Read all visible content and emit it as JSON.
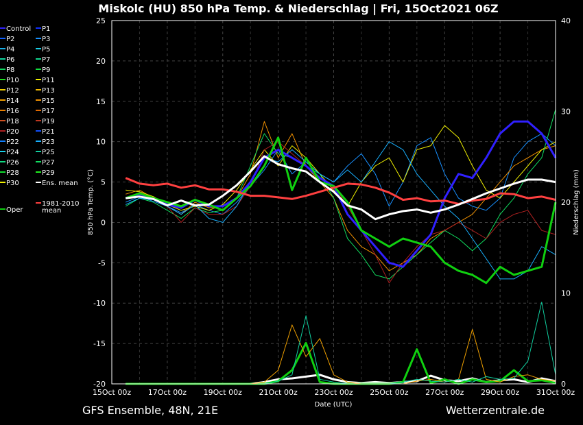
{
  "chart_data": {
    "type": "line",
    "title": "Miskolc  (HU)  850 hPa Temp. & Niederschlag | Fri, 15Oct2021 06Z",
    "xlabel": "Date (UTC)",
    "ylabel": "850 hPa Temp. (°C)",
    "y2label": "Niederschlag (mm)",
    "ylim": [
      -20,
      25
    ],
    "y2lim": [
      0,
      40
    ],
    "yticks": [
      -20,
      -15,
      -10,
      -5,
      0,
      5,
      10,
      15,
      20,
      25
    ],
    "y2ticks": [
      0,
      10,
      20,
      30,
      40
    ],
    "xticks": [
      "15Oct 00z",
      "17Oct 00z",
      "19Oct 00z",
      "21Oct 00z",
      "23Oct 00z",
      "25Oct 00z",
      "27Oct 00z",
      "29Oct 00z",
      "31Oct 00z"
    ],
    "x_unit": "hours after 15Oct 00z, 12-hourly from 12 to 384",
    "x_start_hours": 12,
    "x_step_hours": 12,
    "grid": true,
    "legend_position": "left-outside",
    "legend": [
      {
        "name": "Control",
        "color": "#3020ff"
      },
      {
        "name": "P1",
        "color": "#1030ff"
      },
      {
        "name": "P2",
        "color": "#1060ff"
      },
      {
        "name": "P3",
        "color": "#1890ff"
      },
      {
        "name": "P4",
        "color": "#18b0e8"
      },
      {
        "name": "P5",
        "color": "#18d0e8"
      },
      {
        "name": "P6",
        "color": "#10d8a0"
      },
      {
        "name": "P7",
        "color": "#10d890"
      },
      {
        "name": "P8",
        "color": "#10d860"
      },
      {
        "name": "P9",
        "color": "#10e040"
      },
      {
        "name": "P10",
        "color": "#20e020"
      },
      {
        "name": "P11",
        "color": "#f0f000"
      },
      {
        "name": "P12",
        "color": "#f0d000"
      },
      {
        "name": "P13",
        "color": "#f0b800"
      },
      {
        "name": "P14",
        "color": "#f0a000"
      },
      {
        "name": "P15",
        "color": "#f09000"
      },
      {
        "name": "P16",
        "color": "#e88000"
      },
      {
        "name": "P17",
        "color": "#e06800"
      },
      {
        "name": "P18",
        "color": "#d05020"
      },
      {
        "name": "P19",
        "color": "#c03820"
      },
      {
        "name": "P20",
        "color": "#b02020"
      },
      {
        "name": "P21",
        "color": "#1050ff"
      },
      {
        "name": "P22",
        "color": "#1080ff"
      },
      {
        "name": "P23",
        "color": "#18b0ff"
      },
      {
        "name": "P24",
        "color": "#18d0e8"
      },
      {
        "name": "P25",
        "color": "#10d0a0"
      },
      {
        "name": "P26",
        "color": "#10d880"
      },
      {
        "name": "P27",
        "color": "#10e060"
      },
      {
        "name": "P28",
        "color": "#10e030"
      },
      {
        "name": "P29",
        "color": "#20f020"
      },
      {
        "name": "P30",
        "color": "#f0f000"
      },
      {
        "name": "Ens. mean",
        "color": "#ffffff"
      },
      {
        "name": "1981-2010 mean",
        "color": "#ff4040"
      },
      {
        "name": "Oper",
        "color": "#10d010"
      }
    ],
    "series": [
      {
        "name": "P3",
        "color": "#1890ff",
        "width": 1,
        "values": [
          2.5,
          3.2,
          2.6,
          2.0,
          1.2,
          2.2,
          1.5,
          1.0,
          2.5,
          4.5,
          6.5,
          9.0,
          6.0,
          7.5,
          6.0,
          5.0,
          7.0,
          8.5,
          6.0,
          2.0,
          5.0,
          9.5,
          10.5,
          6.0,
          3.0,
          2.0,
          1.5,
          3.0,
          8.0,
          10.0,
          11.0,
          9.5
        ]
      },
      {
        "name": "P15",
        "color": "#f09000",
        "width": 1,
        "values": [
          3.5,
          4.0,
          3.0,
          2.0,
          1.0,
          2.5,
          1.8,
          2.0,
          3.0,
          6.0,
          12.5,
          8.0,
          11.0,
          7.0,
          5.0,
          3.0,
          -1.0,
          -3.0,
          -4.0,
          -6.0,
          -5.0,
          -4.0,
          -2.0,
          -1.0,
          0.0,
          1.0,
          3.0,
          5.0,
          7.0,
          8.0,
          9.0,
          9.5
        ]
      },
      {
        "name": "P11",
        "color": "#f0f000",
        "width": 1,
        "values": [
          4.0,
          3.8,
          3.2,
          2.2,
          1.5,
          2.0,
          1.5,
          2.2,
          4.0,
          6.5,
          9.0,
          7.0,
          9.5,
          8.0,
          6.0,
          4.0,
          2.0,
          5.0,
          7.0,
          8.0,
          5.0,
          9.0,
          9.5,
          12.0,
          10.5,
          7.0,
          4.0,
          3.0,
          5.0,
          7.0,
          9.0,
          10.0
        ]
      },
      {
        "name": "P27",
        "color": "#10e060",
        "width": 1,
        "values": [
          2.0,
          3.0,
          2.5,
          1.5,
          0.5,
          1.8,
          1.2,
          1.5,
          3.0,
          7.0,
          11.0,
          8.5,
          8.0,
          7.0,
          6.0,
          3.0,
          -2.0,
          -4.0,
          -6.5,
          -7.0,
          -5.5,
          -4.0,
          -2.5,
          -1.0,
          -2.0,
          -3.5,
          -2.0,
          1.0,
          3.0,
          6.0,
          8.0,
          14.0
        ]
      },
      {
        "name": "P20",
        "color": "#b02020",
        "width": 1,
        "values": [
          3.0,
          3.5,
          3.0,
          2.0,
          0.0,
          1.8,
          1.0,
          1.0,
          2.0,
          4.5,
          9.0,
          10.0,
          8.5,
          7.0,
          5.5,
          4.5,
          2.0,
          -1.0,
          -4.0,
          -7.5,
          -5.0,
          -3.0,
          -1.5,
          -1.0,
          0.0,
          -1.0,
          -2.0,
          0.0,
          1.0,
          1.5,
          -1.0,
          -1.5
        ]
      },
      {
        "name": "P23",
        "color": "#18b0ff",
        "width": 1,
        "values": [
          2.2,
          3.0,
          2.8,
          2.0,
          1.0,
          2.2,
          0.5,
          0.0,
          2.0,
          5.0,
          8.0,
          7.5,
          9.0,
          7.5,
          6.0,
          5.0,
          6.5,
          5.0,
          7.5,
          10.0,
          9.0,
          6.0,
          4.0,
          2.0,
          0.5,
          -2.0,
          -4.5,
          -7.0,
          -7.0,
          -6.0,
          -3.0,
          -4.0
        ]
      },
      {
        "name": "Control",
        "color": "#3020ff",
        "width": 3,
        "values": [
          3.0,
          3.5,
          3.0,
          2.2,
          1.8,
          2.8,
          2.0,
          2.0,
          3.0,
          5.0,
          8.0,
          9.0,
          8.0,
          7.0,
          5.5,
          4.5,
          1.0,
          -1.0,
          -3.0,
          -5.0,
          -5.5,
          -3.5,
          -1.5,
          3.0,
          6.0,
          5.5,
          8.0,
          11.0,
          12.5,
          12.5,
          11.0,
          8.0
        ]
      },
      {
        "name": "Oper",
        "color": "#10d010",
        "width": 3,
        "values": [
          3.0,
          3.6,
          3.0,
          2.5,
          2.0,
          2.8,
          2.2,
          1.5,
          3.0,
          4.5,
          7.0,
          10.5,
          4.0,
          8.0,
          5.0,
          4.5,
          2.5,
          -1.0,
          -2.0,
          -3.0,
          -2.0,
          -2.5,
          -3.0,
          -5.0,
          -6.0,
          -6.5,
          -7.5,
          -5.5,
          -6.5,
          -6.0,
          -5.5,
          2.5
        ]
      },
      {
        "name": "1981-2010 mean",
        "color": "#ff4040",
        "width": 3,
        "values": [
          5.5,
          4.8,
          4.6,
          4.8,
          4.3,
          4.6,
          4.1,
          4.1,
          3.8,
          3.3,
          3.3,
          3.1,
          2.9,
          3.3,
          3.8,
          4.3,
          4.8,
          4.7,
          4.3,
          3.7,
          2.8,
          3.0,
          2.6,
          2.7,
          2.3,
          2.7,
          2.9,
          3.6,
          3.5,
          3.0,
          3.2,
          2.8
        ]
      },
      {
        "name": "Ens. mean",
        "color": "#ffffff",
        "width": 3,
        "values": [
          3.0,
          3.2,
          2.9,
          2.1,
          2.7,
          2.1,
          2.2,
          3.3,
          4.6,
          6.3,
          8.2,
          7.2,
          6.7,
          6.3,
          5.0,
          3.8,
          2.1,
          1.6,
          0.4,
          1.0,
          1.4,
          1.6,
          1.2,
          1.6,
          2.2,
          2.9,
          3.6,
          4.2,
          4.8,
          5.3,
          5.3,
          5.0
        ]
      }
    ],
    "precip_series": [
      {
        "name": "Ens. mean",
        "color": "#ffffff",
        "width": 3,
        "values": [
          0,
          0,
          0,
          0,
          0,
          0,
          0,
          0,
          0,
          0,
          0.2,
          0.5,
          0.6,
          0.8,
          1.0,
          0.5,
          0.2,
          0.1,
          0.2,
          0.1,
          0.2,
          0.3,
          0.9,
          0.4,
          0.3,
          0.6,
          0.2,
          0.4,
          0.5,
          0.2,
          0.6,
          0.3
        ]
      },
      {
        "name": "Oper",
        "color": "#10d010",
        "width": 3,
        "values": [
          0,
          0,
          0,
          0,
          0,
          0,
          0,
          0,
          0,
          0,
          0,
          0.3,
          1.5,
          4.5,
          0.2,
          0,
          0,
          0,
          0,
          0,
          0.2,
          3.8,
          0.1,
          0.5,
          0,
          0.5,
          0.2,
          0.3,
          1.5,
          0.3,
          0.4,
          0.1
        ]
      },
      {
        "name": "P14",
        "color": "#f0a000",
        "width": 1,
        "values": [
          0,
          0,
          0,
          0,
          0,
          0,
          0,
          0,
          0,
          0,
          0.2,
          1.5,
          6.5,
          3.0,
          5.0,
          1.0,
          0.2,
          0,
          0,
          0,
          0,
          0.3,
          0.5,
          0.2,
          0.5,
          6.0,
          0.5,
          0.2,
          0.8,
          1.0,
          0.5,
          0.3
        ]
      },
      {
        "name": "P25",
        "color": "#10d0a0",
        "width": 1,
        "values": [
          0,
          0,
          0,
          0,
          0,
          0,
          0,
          0,
          0,
          0,
          0,
          0.3,
          1.0,
          7.5,
          0.5,
          0.2,
          0,
          0,
          0,
          0,
          0.2,
          0.5,
          0.3,
          0.2,
          0.5,
          0.2,
          0.8,
          0.5,
          0.6,
          2.5,
          9.0,
          1.0
        ]
      }
    ]
  },
  "footer": {
    "left": "GFS Ensemble, 48N, 21E",
    "right": "Wetterzentrale.de"
  }
}
